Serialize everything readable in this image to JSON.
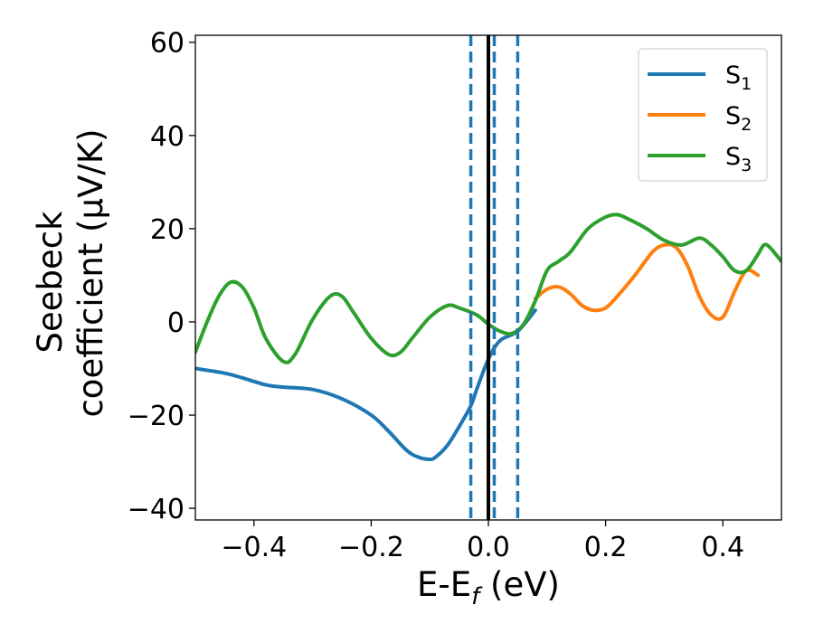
{
  "chart_data": {
    "type": "line",
    "title": "",
    "xlabel": "E-E",
    "xlabel_sub": "f",
    "xlabel_tail": " (eV)",
    "ylabel_line1": "Seebeck",
    "ylabel_line2": "coefficient  (μV/K)",
    "xlim": [
      -0.5,
      0.5
    ],
    "ylim": [
      -42.5,
      61.5
    ],
    "xticks": [
      -0.4,
      -0.2,
      0.0,
      0.2,
      0.4
    ],
    "xtick_labels": [
      "−0.4",
      "−0.2",
      "0.0",
      "0.2",
      "0.4"
    ],
    "yticks": [
      -40,
      -20,
      0,
      20,
      40,
      60
    ],
    "ytick_labels": [
      "−40",
      "−20",
      "0",
      "20",
      "40",
      "60"
    ],
    "grid": false,
    "legend_position": "top-right",
    "vlines": [
      {
        "x": 0.0,
        "style": "solid",
        "color": "#000000"
      },
      {
        "x": -0.03,
        "style": "dashed",
        "color": "#1f77b4"
      },
      {
        "x": 0.01,
        "style": "dashed",
        "color": "#1f77b4"
      },
      {
        "x": 0.05,
        "style": "dashed",
        "color": "#1f77b4"
      }
    ],
    "series": [
      {
        "name": "S",
        "sub": "1",
        "color": "#1f77b4",
        "x": [
          -0.5,
          -0.45,
          -0.42,
          -0.38,
          -0.35,
          -0.3,
          -0.25,
          -0.2,
          -0.17,
          -0.14,
          -0.12,
          -0.1,
          -0.09,
          -0.07,
          -0.05,
          -0.03,
          -0.02,
          0.0,
          0.02,
          0.05,
          0.08
        ],
        "y": [
          -10.0,
          -11.0,
          -12.0,
          -13.5,
          -14.0,
          -14.5,
          -16.5,
          -20.0,
          -23.5,
          -27.5,
          -29.0,
          -29.5,
          -29.0,
          -26.5,
          -22.5,
          -18.0,
          -14.5,
          -8.0,
          -4.0,
          -2.0,
          2.5
        ]
      },
      {
        "name": "S",
        "sub": "2",
        "color": "#ff7f0e",
        "x": [
          0.08,
          0.1,
          0.12,
          0.14,
          0.16,
          0.18,
          0.2,
          0.22,
          0.25,
          0.28,
          0.3,
          0.32,
          0.34,
          0.36,
          0.38,
          0.4,
          0.42,
          0.44,
          0.46
        ],
        "y": [
          5.0,
          7.0,
          7.5,
          6.0,
          3.5,
          2.5,
          3.0,
          5.5,
          10.0,
          15.0,
          16.5,
          16.0,
          12.0,
          5.5,
          1.5,
          1.0,
          6.5,
          11.0,
          10.0
        ]
      },
      {
        "name": "S",
        "sub": "3",
        "color": "#2ca02c",
        "x": [
          -0.5,
          -0.48,
          -0.46,
          -0.44,
          -0.42,
          -0.4,
          -0.38,
          -0.35,
          -0.33,
          -0.3,
          -0.27,
          -0.25,
          -0.23,
          -0.2,
          -0.17,
          -0.15,
          -0.13,
          -0.1,
          -0.07,
          -0.05,
          -0.02,
          0.0,
          0.02,
          0.04,
          0.06,
          0.08,
          0.1,
          0.12,
          0.14,
          0.17,
          0.2,
          0.22,
          0.24,
          0.27,
          0.3,
          0.33,
          0.36,
          0.38,
          0.4,
          0.42,
          0.44,
          0.46,
          0.47,
          0.48,
          0.5
        ],
        "y": [
          -6.5,
          0.0,
          5.5,
          8.5,
          7.5,
          3.0,
          -3.5,
          -8.5,
          -7.0,
          0.5,
          5.5,
          5.5,
          2.0,
          -3.5,
          -7.0,
          -6.5,
          -3.5,
          1.0,
          3.5,
          3.0,
          1.5,
          -0.5,
          -2.0,
          -2.5,
          -0.5,
          4.5,
          11.0,
          13.0,
          15.0,
          20.0,
          22.5,
          23.0,
          22.0,
          20.0,
          17.5,
          16.5,
          18.0,
          16.5,
          14.0,
          11.0,
          11.0,
          14.5,
          16.5,
          16.0,
          13.0
        ]
      }
    ]
  }
}
